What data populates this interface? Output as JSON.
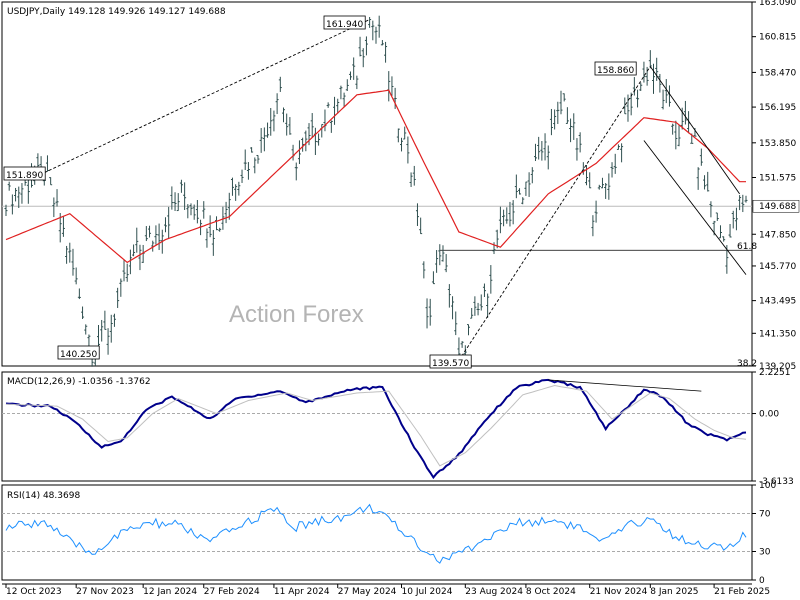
{
  "chart_data": [
    {
      "type": "candlestick",
      "header": "USDJPY,Daily  149.128 149.926 149.127 149.688",
      "ylim": [
        139.205,
        163.09
      ],
      "ticks": [
        "163.090",
        "160.815",
        "158.470",
        "156.195",
        "153.850",
        "151.575",
        "149.688",
        "147.850",
        "145.770",
        "143.495",
        "141.350",
        "139.205"
      ],
      "current_price": "149.688",
      "hline_level": 146.8,
      "watermark": "Action Forex",
      "labels": [
        {
          "text": "161.940",
          "price": 161.94,
          "idx": 114
        },
        {
          "text": "151.890",
          "price": 151.89,
          "idx": 12
        },
        {
          "text": "140.250",
          "price": 140.25,
          "idx": 27
        },
        {
          "text": "139.570",
          "price": 139.57,
          "idx": 142
        },
        {
          "text": "158.860",
          "price": 158.86,
          "idx": 202
        },
        {
          "text": "61.8",
          "price": 146.8,
          "idx": 226
        },
        {
          "text": "38.2",
          "price": 139.3,
          "idx": 226
        }
      ],
      "anchors": [
        [
          0,
          150.2
        ],
        [
          12,
          151.89
        ],
        [
          18,
          148.0
        ],
        [
          24,
          143.0
        ],
        [
          27,
          140.25
        ],
        [
          32,
          141.5
        ],
        [
          40,
          146.5
        ],
        [
          48,
          148.0
        ],
        [
          55,
          150.5
        ],
        [
          62,
          149.0
        ],
        [
          66,
          148.0
        ],
        [
          72,
          151.5
        ],
        [
          80,
          153.8
        ],
        [
          86,
          157.5
        ],
        [
          90,
          152.5
        ],
        [
          97,
          154.5
        ],
        [
          104,
          156.5
        ],
        [
          110,
          158.5
        ],
        [
          114,
          161.94
        ],
        [
          118,
          160.5
        ],
        [
          122,
          156.0
        ],
        [
          126,
          153.5
        ],
        [
          130,
          148.0
        ],
        [
          132,
          142.0
        ],
        [
          136,
          147.0
        ],
        [
          140,
          143.5
        ],
        [
          142,
          139.57
        ],
        [
          146,
          142.0
        ],
        [
          150,
          143.5
        ],
        [
          154,
          147.5
        ],
        [
          160,
          150.0
        ],
        [
          166,
          152.5
        ],
        [
          170,
          154.0
        ],
        [
          175,
          156.5
        ],
        [
          180,
          153.0
        ],
        [
          184,
          149.5
        ],
        [
          190,
          152.0
        ],
        [
          196,
          156.5
        ],
        [
          202,
          158.86
        ],
        [
          206,
          157.0
        ],
        [
          210,
          154.5
        ],
        [
          214,
          155.0
        ],
        [
          218,
          152.0
        ],
        [
          222,
          149.0
        ],
        [
          226,
          147.0
        ],
        [
          230,
          149.7
        ]
      ],
      "sma_anchors": [
        [
          0,
          147.5
        ],
        [
          20,
          149.2
        ],
        [
          38,
          146.0
        ],
        [
          50,
          147.5
        ],
        [
          70,
          149.0
        ],
        [
          90,
          153.0
        ],
        [
          110,
          157.0
        ],
        [
          120,
          157.3
        ],
        [
          130,
          153.0
        ],
        [
          142,
          148.0
        ],
        [
          155,
          147.0
        ],
        [
          170,
          150.5
        ],
        [
          185,
          152.5
        ],
        [
          200,
          155.5
        ],
        [
          210,
          155.2
        ],
        [
          220,
          153.5
        ],
        [
          230,
          151.3
        ]
      ],
      "trendlines": [
        {
          "from": [
            12,
            151.89
          ],
          "to": [
            114,
            161.94
          ],
          "dashed": true
        },
        {
          "from": [
            142,
            139.57
          ],
          "to": [
            202,
            158.86
          ],
          "dashed": true
        },
        {
          "from": [
            202,
            158.86
          ],
          "to": [
            230,
            150.5
          ],
          "dashed": false
        },
        {
          "from": [
            200,
            154.0
          ],
          "to": [
            232,
            145.2
          ],
          "dashed": false
        }
      ]
    },
    {
      "type": "line",
      "header": "MACD(12,26,9) -1.0356 -1.3762",
      "ylim": [
        -3.6133,
        2.2251
      ],
      "ticks": [
        "2.2251",
        "0.00",
        "-3.6133"
      ],
      "series": [
        {
          "name": "MACD",
          "anchors": [
            [
              0,
              0.5
            ],
            [
              14,
              0.4
            ],
            [
              22,
              -0.5
            ],
            [
              30,
              -1.8
            ],
            [
              36,
              -1.5
            ],
            [
              44,
              0.2
            ],
            [
              52,
              0.9
            ],
            [
              64,
              -0.3
            ],
            [
              72,
              0.8
            ],
            [
              86,
              1.2
            ],
            [
              94,
              0.6
            ],
            [
              108,
              1.3
            ],
            [
              118,
              1.4
            ],
            [
              128,
              -1.8
            ],
            [
              134,
              -3.4
            ],
            [
              142,
              -2.2
            ],
            [
              150,
              -0.4
            ],
            [
              160,
              1.4
            ],
            [
              170,
              1.8
            ],
            [
              180,
              1.4
            ],
            [
              188,
              -0.8
            ],
            [
              194,
              0.2
            ],
            [
              200,
              1.3
            ],
            [
              206,
              0.9
            ],
            [
              214,
              -0.6
            ],
            [
              220,
              -1.1
            ],
            [
              226,
              -1.4
            ],
            [
              232,
              -1.0
            ]
          ]
        },
        {
          "name": "Signal",
          "anchors": [
            [
              0,
              0.5
            ],
            [
              16,
              0.4
            ],
            [
              24,
              -0.3
            ],
            [
              32,
              -1.5
            ],
            [
              38,
              -1.3
            ],
            [
              46,
              0.0
            ],
            [
              54,
              0.8
            ],
            [
              66,
              0.0
            ],
            [
              76,
              0.7
            ],
            [
              88,
              1.1
            ],
            [
              96,
              0.7
            ],
            [
              110,
              1.1
            ],
            [
              120,
              1.2
            ],
            [
              130,
              -1.2
            ],
            [
              136,
              -2.8
            ],
            [
              144,
              -2.1
            ],
            [
              152,
              -0.8
            ],
            [
              162,
              1.0
            ],
            [
              172,
              1.5
            ],
            [
              182,
              1.2
            ],
            [
              190,
              -0.3
            ],
            [
              196,
              0.4
            ],
            [
              202,
              1.1
            ],
            [
              208,
              0.8
            ],
            [
              216,
              -0.3
            ],
            [
              222,
              -0.9
            ],
            [
              228,
              -1.3
            ],
            [
              232,
              -1.38
            ]
          ]
        }
      ],
      "divergence": {
        "from": [
          170,
          1.8
        ],
        "to": [
          210,
          1.3
        ]
      }
    },
    {
      "type": "line",
      "header": "RSI(14) 48.3698",
      "ylim": [
        0,
        100
      ],
      "ticks": [
        "100",
        "70",
        "30",
        "0"
      ],
      "levels": [
        70,
        30
      ],
      "series": [
        {
          "name": "RSI",
          "anchors": [
            [
              0,
              55
            ],
            [
              12,
              62
            ],
            [
              20,
              40
            ],
            [
              27,
              28
            ],
            [
              34,
              45
            ],
            [
              44,
              60
            ],
            [
              54,
              58
            ],
            [
              64,
              40
            ],
            [
              72,
              55
            ],
            [
              84,
              75
            ],
            [
              90,
              55
            ],
            [
              98,
              62
            ],
            [
              108,
              68
            ],
            [
              114,
              78
            ],
            [
              124,
              52
            ],
            [
              132,
              30
            ],
            [
              136,
              20
            ],
            [
              142,
              28
            ],
            [
              150,
              42
            ],
            [
              160,
              60
            ],
            [
              172,
              63
            ],
            [
              180,
              55
            ],
            [
              186,
              38
            ],
            [
              196,
              58
            ],
            [
              202,
              65
            ],
            [
              210,
              45
            ],
            [
              218,
              38
            ],
            [
              226,
              32
            ],
            [
              232,
              48
            ]
          ]
        }
      ]
    }
  ],
  "xaxis": {
    "labels": [
      {
        "text": "12 Oct 2023",
        "idx": 0
      },
      {
        "text": "27 Nov 2023",
        "idx": 22
      },
      {
        "text": "12 Jan 2024",
        "idx": 43
      },
      {
        "text": "27 Feb 2024",
        "idx": 62
      },
      {
        "text": "11 Apr 2024",
        "idx": 84
      },
      {
        "text": "27 May 2024",
        "idx": 104
      },
      {
        "text": "10 Jul 2024",
        "idx": 124
      },
      {
        "text": "23 Aug 2024",
        "idx": 144
      },
      {
        "text": "8 Oct 2024",
        "idx": 163
      },
      {
        "text": "21 Nov 2024",
        "idx": 183
      },
      {
        "text": "8 Jan 2025",
        "idx": 202
      },
      {
        "text": "21 Feb 2025",
        "idx": 222
      }
    ]
  },
  "colors": {
    "bars": "#2f4f4f",
    "sma": "#e02020",
    "macd": "#00008b",
    "signal": "#c0c0c0",
    "rsi": "#1e90ff",
    "trend": "#000000",
    "label_box": "#000000"
  }
}
